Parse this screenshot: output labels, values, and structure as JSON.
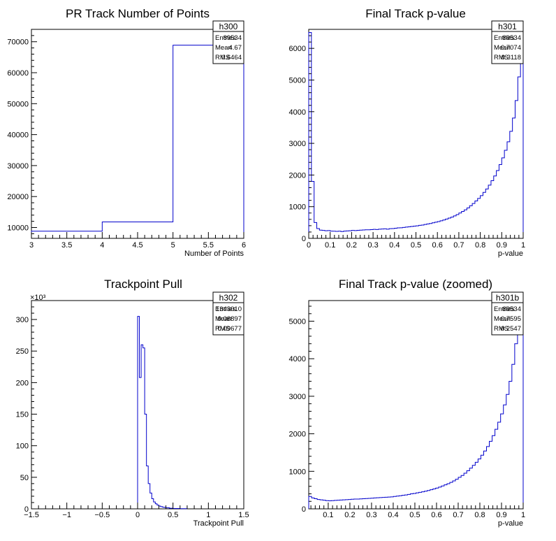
{
  "chart_data": [
    {
      "name": "h300",
      "type": "histogram",
      "title": "PR Track Number of Points",
      "xlabel": "Number of Points",
      "ylabel": "",
      "xlim": [
        3,
        6
      ],
      "ylim": [
        6500,
        74000
      ],
      "xticks": [
        "3",
        "3.5",
        "4",
        "4.5",
        "5",
        "5.5",
        "6"
      ],
      "yticks": [
        "10000",
        "20000",
        "30000",
        "40000",
        "50000",
        "60000",
        "70000"
      ],
      "bin_edges": [
        3,
        4,
        5,
        6
      ],
      "values": [
        8800,
        11800,
        68900
      ],
      "stats": {
        "title": "h300",
        "entries": "89534",
        "mean": "4.67",
        "rms": "0.6464"
      }
    },
    {
      "name": "h301",
      "type": "histogram",
      "title": "Final Track p-value",
      "xlabel": "p-value",
      "ylabel": "",
      "xlim": [
        0,
        1
      ],
      "ylim": [
        0,
        6600
      ],
      "xticks": [
        "0",
        "0.1",
        "0.2",
        "0.3",
        "0.4",
        "0.5",
        "0.6",
        "0.7",
        "0.8",
        "0.9",
        "1"
      ],
      "yticks": [
        "0",
        "1000",
        "2000",
        "3000",
        "4000",
        "5000",
        "6000"
      ],
      "bin_edges_range": [
        0,
        1
      ],
      "values": [
        6500,
        1800,
        500,
        310,
        260,
        250,
        240,
        245,
        230,
        225,
        220,
        225,
        215,
        230,
        235,
        240,
        250,
        245,
        255,
        260,
        265,
        270,
        270,
        275,
        285,
        280,
        290,
        295,
        300,
        290,
        305,
        310,
        320,
        330,
        335,
        345,
        355,
        365,
        375,
        385,
        395,
        410,
        420,
        440,
        455,
        470,
        490,
        510,
        530,
        555,
        580,
        610,
        640,
        670,
        710,
        750,
        800,
        850,
        900,
        960,
        1030,
        1100,
        1180,
        1260,
        1350,
        1450,
        1560,
        1680,
        1820,
        1970,
        2140,
        2330,
        2540,
        2780,
        3050,
        3380,
        3800,
        4350,
        5100,
        5900
      ],
      "stats": {
        "title": "h301",
        "entries": "89534",
        "mean": "0.7074",
        "rms": "0.3118"
      }
    },
    {
      "name": "h302",
      "type": "histogram",
      "title": "Trackpoint Pull",
      "xlabel": "Trackpoint Pull",
      "ylabel": "",
      "exponent_label": "×10³",
      "xlim": [
        -1.5,
        1.5
      ],
      "ylim": [
        0,
        330
      ],
      "xticks": [
        "−1.5",
        "−1",
        "−0.5",
        "0",
        "0.5",
        "1",
        "1.5"
      ],
      "yticks": [
        "0",
        "50",
        "100",
        "150",
        "200",
        "250",
        "300"
      ],
      "bin_edges": [
        0,
        0.025,
        0.05,
        0.075,
        0.1,
        0.125,
        0.15,
        0.175,
        0.2,
        0.225,
        0.25,
        0.275,
        0.3,
        0.325,
        0.35,
        0.375,
        0.4,
        0.45,
        0.5,
        0.6,
        0.7
      ],
      "values": [
        305,
        208,
        260,
        255,
        150,
        68,
        40,
        25,
        16,
        11,
        8,
        6,
        4.5,
        3.5,
        2.8,
        2.2,
        1.6,
        1.0,
        0.6,
        0.3
      ],
      "stats": {
        "title": "h302",
        "entries": "1343010",
        "mean": "0.08897",
        "rms": "0.09677"
      }
    },
    {
      "name": "h301b",
      "type": "histogram",
      "title": "Final Track p-value (zoomed)",
      "xlabel": "p-value",
      "ylabel": "",
      "xlim": [
        0.01,
        1
      ],
      "ylim": [
        0,
        5550
      ],
      "xticks": [
        "0.1",
        "0.2",
        "0.3",
        "0.4",
        "0.5",
        "0.6",
        "0.7",
        "0.8",
        "0.9",
        "1"
      ],
      "yticks": [
        "0",
        "1000",
        "2000",
        "3000",
        "4000",
        "5000"
      ],
      "bin_edges_range": [
        0.01,
        1
      ],
      "values": [
        330,
        290,
        270,
        250,
        240,
        230,
        220,
        215,
        220,
        225,
        230,
        235,
        240,
        245,
        250,
        255,
        260,
        260,
        265,
        270,
        275,
        280,
        285,
        290,
        295,
        300,
        305,
        310,
        315,
        320,
        330,
        340,
        350,
        360,
        370,
        385,
        400,
        410,
        425,
        440,
        455,
        470,
        490,
        510,
        530,
        555,
        580,
        610,
        640,
        670,
        705,
        745,
        790,
        840,
        890,
        950,
        1015,
        1085,
        1160,
        1240,
        1330,
        1430,
        1540,
        1660,
        1800,
        1950,
        2120,
        2310,
        2530,
        2770,
        3050,
        3400,
        3850,
        4400,
        5000,
        5500
      ],
      "stats": {
        "title": "h301b",
        "entries": "89534",
        "mean": "0.7595",
        "rms": "0.2547"
      }
    }
  ],
  "stats_labels": {
    "entries": "Entries",
    "mean": "Mean",
    "rms": "RMS"
  }
}
